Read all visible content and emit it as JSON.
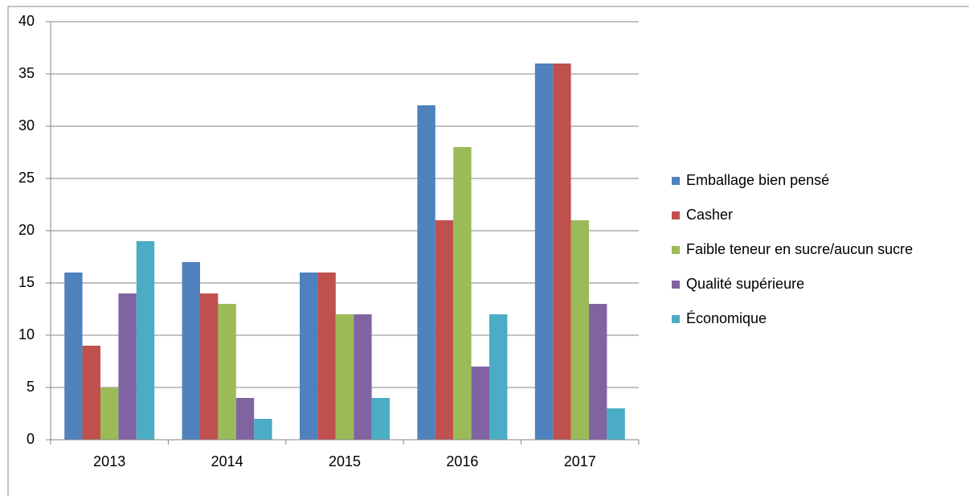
{
  "chart_data": {
    "type": "bar",
    "categories": [
      "2013",
      "2014",
      "2015",
      "2016",
      "2017"
    ],
    "series": [
      {
        "name": "Emballage bien pensé",
        "color": "#4f81bd",
        "values": [
          16,
          17,
          16,
          32,
          36
        ]
      },
      {
        "name": "Casher",
        "color": "#c0504d",
        "values": [
          9,
          14,
          16,
          21,
          36
        ]
      },
      {
        "name": "Faible teneur en sucre/aucun sucre",
        "color": "#9bbb59",
        "values": [
          5,
          13,
          12,
          28,
          21
        ]
      },
      {
        "name": "Qualité supérieure",
        "color": "#8064a2",
        "values": [
          14,
          4,
          12,
          7,
          13
        ]
      },
      {
        "name": "Économique",
        "color": "#4bacc6",
        "values": [
          19,
          2,
          4,
          12,
          3
        ]
      }
    ],
    "ylim": [
      0,
      40
    ],
    "yticks": [
      0,
      5,
      10,
      15,
      20,
      25,
      30,
      35,
      40
    ],
    "grid": true,
    "legend": "right"
  }
}
